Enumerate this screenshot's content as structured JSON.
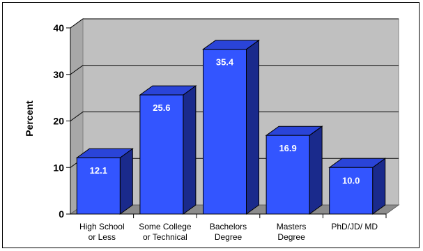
{
  "chart_data": {
    "type": "bar",
    "title": "",
    "xlabel": "",
    "ylabel": "Percent",
    "categories": [
      [
        "High School",
        "or Less"
      ],
      [
        "Some College",
        "or Technical"
      ],
      [
        "Bachelors",
        "Degree"
      ],
      [
        "Masters",
        "Degree"
      ],
      [
        "PhD/JD/ MD"
      ]
    ],
    "values": [
      12.1,
      25.6,
      35.4,
      16.9,
      10.0
    ],
    "value_labels": [
      "12.1",
      "25.6",
      "35.4",
      "16.9",
      "10.0"
    ],
    "ylim": [
      0,
      40
    ],
    "yticks": [
      0,
      10,
      20,
      30,
      40
    ],
    "grid": true,
    "legend": "none",
    "style": "3d-column",
    "colors": {
      "bar_front": "#3355ff",
      "bar_side": "#1a2a8c",
      "bar_top": "#2a44d8",
      "wall": "#c0c0c0",
      "floor": "#8c8c8c",
      "value_text": "#ffffff"
    }
  }
}
